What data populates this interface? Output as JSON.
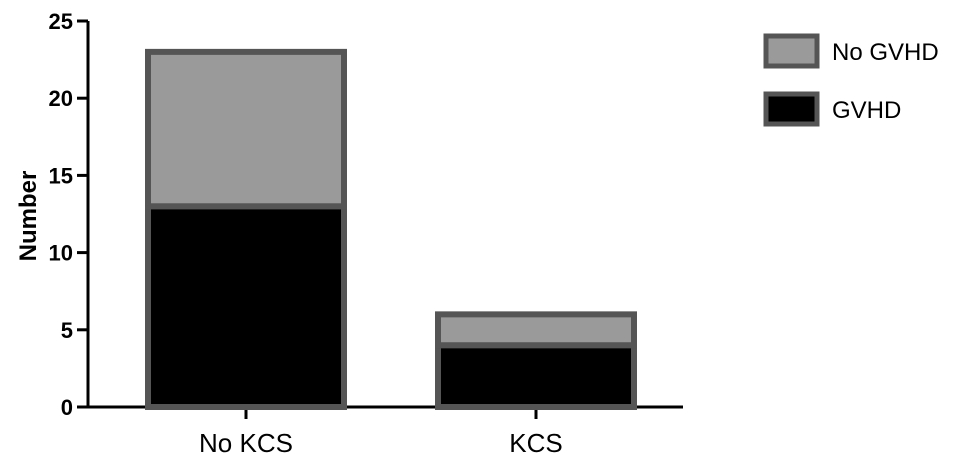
{
  "chart_data": {
    "type": "bar",
    "stacked": true,
    "categories": [
      "No KCS",
      "KCS"
    ],
    "series": [
      {
        "name": "GVHD",
        "values": [
          13,
          4
        ],
        "color": "#000000"
      },
      {
        "name": "No GVHD",
        "values": [
          10,
          2
        ],
        "color": "#9a9a9a"
      }
    ],
    "ylabel": "Number",
    "xlabel": "",
    "title": "",
    "ylim": [
      0,
      25
    ],
    "yticks": [
      0,
      5,
      10,
      15,
      20,
      25
    ],
    "legend": {
      "placement": "top-right",
      "entries": [
        "No GVHD",
        "GVHD"
      ]
    },
    "grid": false,
    "edge_color": "#555555"
  }
}
